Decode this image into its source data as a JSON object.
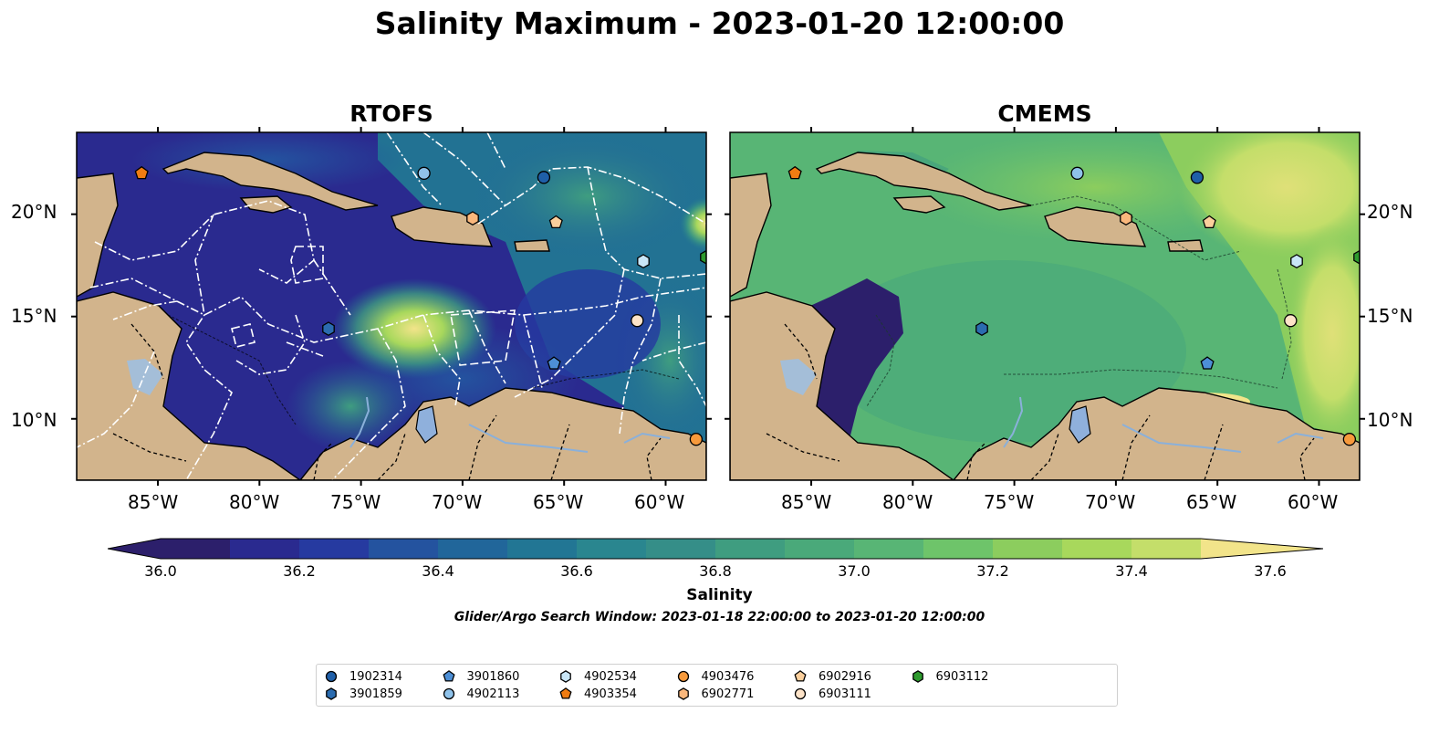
{
  "figure": {
    "title": "Salinity Maximum - 2023-01-20 12:00:00",
    "panels": [
      {
        "title": "RTOFS"
      },
      {
        "title": "CMEMS"
      }
    ],
    "lat_ticks": [
      "20°N",
      "15°N",
      "10°N"
    ],
    "lon_ticks": [
      "85°W",
      "80°W",
      "75°W",
      "70°W",
      "65°W",
      "60°W"
    ],
    "colorbar": {
      "label": "Salinity",
      "ticks": [
        "36.0",
        "36.2",
        "36.4",
        "36.6",
        "36.8",
        "37.0",
        "37.2",
        "37.4",
        "37.6"
      ],
      "note": "Glider/Argo Search Window: 2023-01-18 22:00:00 to 2023-01-20 12:00:00",
      "colors": [
        "#2c1f6b",
        "#2a2a8f",
        "#263aa0",
        "#24539f",
        "#21669a",
        "#227694",
        "#2a868f",
        "#358e88",
        "#3f9d80",
        "#4aa97a",
        "#58b575",
        "#6ec46a",
        "#8ccd5e",
        "#a8d85c",
        "#c4de6a",
        "#dfe078",
        "#f2e48a"
      ]
    },
    "legend": {
      "items": [
        {
          "id": "1902314",
          "shape": "circle",
          "color": "#1f5fa8"
        },
        {
          "id": "3901859",
          "shape": "hexagon",
          "color": "#2b6cb0"
        },
        {
          "id": "3901860",
          "shape": "pentagon",
          "color": "#4d8fd6"
        },
        {
          "id": "4902113",
          "shape": "circle",
          "color": "#8fc2ea"
        },
        {
          "id": "4902534",
          "shape": "hexagon",
          "color": "#c9e6f7"
        },
        {
          "id": "4903354",
          "shape": "pentagon",
          "color": "#f07c12"
        },
        {
          "id": "4903476",
          "shape": "circle",
          "color": "#f79a3c"
        },
        {
          "id": "6902771",
          "shape": "hexagon",
          "color": "#f9b77c"
        },
        {
          "id": "6902916",
          "shape": "pentagon",
          "color": "#fbcf9c"
        },
        {
          "id": "6903111",
          "shape": "circle",
          "color": "#fde3c8"
        },
        {
          "id": "6903112",
          "shape": "hexagon",
          "color": "#2e9a2e"
        }
      ]
    }
  },
  "chart_data": [
    {
      "type": "heatmap",
      "title": "RTOFS",
      "variable": "Salinity",
      "xlim": [
        -89,
        -58
      ],
      "ylim": [
        7,
        24
      ],
      "colorbar_range": [
        36.0,
        37.6
      ],
      "markers": [
        {
          "id": "4903354",
          "lon": -85.8,
          "lat": 22.0
        },
        {
          "id": "4902113",
          "lon": -71.9,
          "lat": 22.0
        },
        {
          "id": "1902314",
          "lon": -66.0,
          "lat": 21.8
        },
        {
          "id": "6902771",
          "lon": -69.5,
          "lat": 19.8
        },
        {
          "id": "6902916",
          "lon": -65.4,
          "lat": 19.6
        },
        {
          "id": "4902534",
          "lon": -61.1,
          "lat": 17.7
        },
        {
          "id": "6903112",
          "lon": -58.0,
          "lat": 17.9
        },
        {
          "id": "6903111",
          "lon": -61.4,
          "lat": 14.8
        },
        {
          "id": "3901859",
          "lon": -76.6,
          "lat": 14.4
        },
        {
          "id": "3901860",
          "lon": -65.5,
          "lat": 12.7
        },
        {
          "id": "4903476",
          "lon": -58.5,
          "lat": 9.0
        }
      ]
    },
    {
      "type": "heatmap",
      "title": "CMEMS",
      "variable": "Salinity",
      "xlim": [
        -89,
        -58
      ],
      "ylim": [
        7,
        24
      ],
      "colorbar_range": [
        36.0,
        37.6
      ],
      "markers": [
        {
          "id": "4903354",
          "lon": -85.8,
          "lat": 22.0
        },
        {
          "id": "4902113",
          "lon": -71.9,
          "lat": 22.0
        },
        {
          "id": "1902314",
          "lon": -66.0,
          "lat": 21.8
        },
        {
          "id": "6902771",
          "lon": -69.5,
          "lat": 19.8
        },
        {
          "id": "6902916",
          "lon": -65.4,
          "lat": 19.6
        },
        {
          "id": "4902534",
          "lon": -61.1,
          "lat": 17.7
        },
        {
          "id": "6903112",
          "lon": -58.0,
          "lat": 17.9
        },
        {
          "id": "6903111",
          "lon": -61.4,
          "lat": 14.8
        },
        {
          "id": "3901859",
          "lon": -76.6,
          "lat": 14.4
        },
        {
          "id": "3901860",
          "lon": -65.5,
          "lat": 12.7
        },
        {
          "id": "4903476",
          "lon": -58.5,
          "lat": 9.0
        }
      ]
    }
  ]
}
